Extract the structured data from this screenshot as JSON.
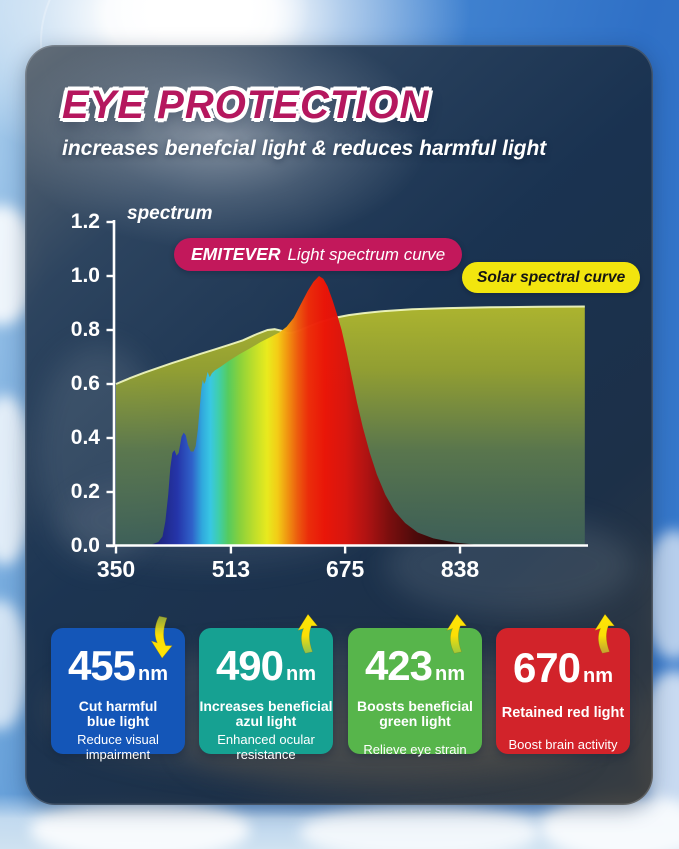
{
  "header": {
    "title": "EYE PROTECTION",
    "subtitle": "increases benefcial light & reduces harmful light"
  },
  "chart": {
    "y_axis_label": "spectrum",
    "emitever_badge": {
      "brand": "EMITEVER",
      "label": "Light spectrum curve"
    },
    "solar_badge": {
      "label": "Solar spectral curve"
    },
    "y_ticks": [
      "1.2",
      "1.0",
      "0.8",
      "0.6",
      "0.4",
      "0.2",
      "0.0"
    ],
    "x_ticks": [
      "350",
      "513",
      "675",
      "838"
    ]
  },
  "chart_data": {
    "type": "area",
    "title": "spectrum",
    "x_unit": "nm",
    "xlim": [
      350,
      1015
    ],
    "ylim": [
      0,
      1.2
    ],
    "x_tick_values": [
      350,
      513,
      675,
      838
    ],
    "y_tick_values": [
      0,
      0.2,
      0.4,
      0.6,
      0.8,
      1.0,
      1.2
    ],
    "legend_position": "top",
    "grid": false,
    "series": [
      {
        "name": "EMITEVER Light spectrum curve",
        "style": "rainbow-gradient-area",
        "points": [
          [
            385,
            0
          ],
          [
            400,
            0.005
          ],
          [
            410,
            0.015
          ],
          [
            416,
            0.035
          ],
          [
            420,
            0.09
          ],
          [
            424,
            0.19
          ],
          [
            427,
            0.29
          ],
          [
            430,
            0.345
          ],
          [
            433,
            0.355
          ],
          [
            436,
            0.335
          ],
          [
            439,
            0.345
          ],
          [
            443,
            0.405
          ],
          [
            446,
            0.42
          ],
          [
            449,
            0.41
          ],
          [
            452,
            0.375
          ],
          [
            456,
            0.35
          ],
          [
            460,
            0.35
          ],
          [
            463,
            0.37
          ],
          [
            466,
            0.43
          ],
          [
            469,
            0.52
          ],
          [
            471,
            0.58
          ],
          [
            473,
            0.615
          ],
          [
            475,
            0.6
          ],
          [
            477,
            0.61
          ],
          [
            480,
            0.645
          ],
          [
            483,
            0.625
          ],
          [
            486,
            0.64
          ],
          [
            490,
            0.65
          ],
          [
            498,
            0.663
          ],
          [
            510,
            0.685
          ],
          [
            525,
            0.71
          ],
          [
            540,
            0.732
          ],
          [
            555,
            0.755
          ],
          [
            570,
            0.775
          ],
          [
            582,
            0.792
          ],
          [
            592,
            0.812
          ],
          [
            602,
            0.845
          ],
          [
            612,
            0.895
          ],
          [
            622,
            0.945
          ],
          [
            630,
            0.978
          ],
          [
            638,
            1.0
          ],
          [
            644,
            0.99
          ],
          [
            650,
            0.962
          ],
          [
            657,
            0.912
          ],
          [
            663,
            0.862
          ],
          [
            670,
            0.8
          ],
          [
            677,
            0.72
          ],
          [
            684,
            0.63
          ],
          [
            692,
            0.53
          ],
          [
            700,
            0.44
          ],
          [
            710,
            0.345
          ],
          [
            720,
            0.265
          ],
          [
            732,
            0.19
          ],
          [
            745,
            0.13
          ],
          [
            760,
            0.085
          ],
          [
            778,
            0.05
          ],
          [
            800,
            0.028
          ],
          [
            830,
            0.013
          ],
          [
            860,
            0.005
          ],
          [
            880,
            0
          ]
        ]
      },
      {
        "name": "Solar spectral curve",
        "style": "olive-area-white-edge",
        "points": [
          [
            350,
            0.6
          ],
          [
            370,
            0.622
          ],
          [
            390,
            0.642
          ],
          [
            410,
            0.66
          ],
          [
            430,
            0.678
          ],
          [
            450,
            0.695
          ],
          [
            470,
            0.712
          ],
          [
            490,
            0.728
          ],
          [
            510,
            0.745
          ],
          [
            530,
            0.762
          ],
          [
            550,
            0.785
          ],
          [
            565,
            0.8
          ],
          [
            575,
            0.803
          ],
          [
            585,
            0.797
          ],
          [
            593,
            0.789
          ],
          [
            600,
            0.79
          ],
          [
            610,
            0.798
          ],
          [
            625,
            0.815
          ],
          [
            640,
            0.83
          ],
          [
            660,
            0.845
          ],
          [
            680,
            0.855
          ],
          [
            700,
            0.862
          ],
          [
            730,
            0.87
          ],
          [
            770,
            0.877
          ],
          [
            820,
            0.881
          ],
          [
            880,
            0.884
          ],
          [
            950,
            0.886
          ],
          [
            1015,
            0.887
          ]
        ]
      }
    ]
  },
  "cards": [
    {
      "value": "455",
      "unit": "nm",
      "arrow": "down",
      "color": "#1456b8",
      "line1": "Cut harmful\nblue light",
      "line2": "Reduce visual\nimpairment"
    },
    {
      "value": "490",
      "unit": "nm",
      "arrow": "up",
      "color": "#16a192",
      "line1": "Increases beneficial\nazul light",
      "line2": "Enhanced ocular\nresistance"
    },
    {
      "value": "423",
      "unit": "nm",
      "arrow": "up",
      "color": "#57b54b",
      "line1": "Boosts beneficial\ngreen light",
      "line2": "Relieve eye strain"
    },
    {
      "value": "670",
      "unit": "nm",
      "arrow": "up",
      "color": "#d2232a",
      "line1": "Retained red light",
      "line2": "Boost brain activity"
    }
  ]
}
